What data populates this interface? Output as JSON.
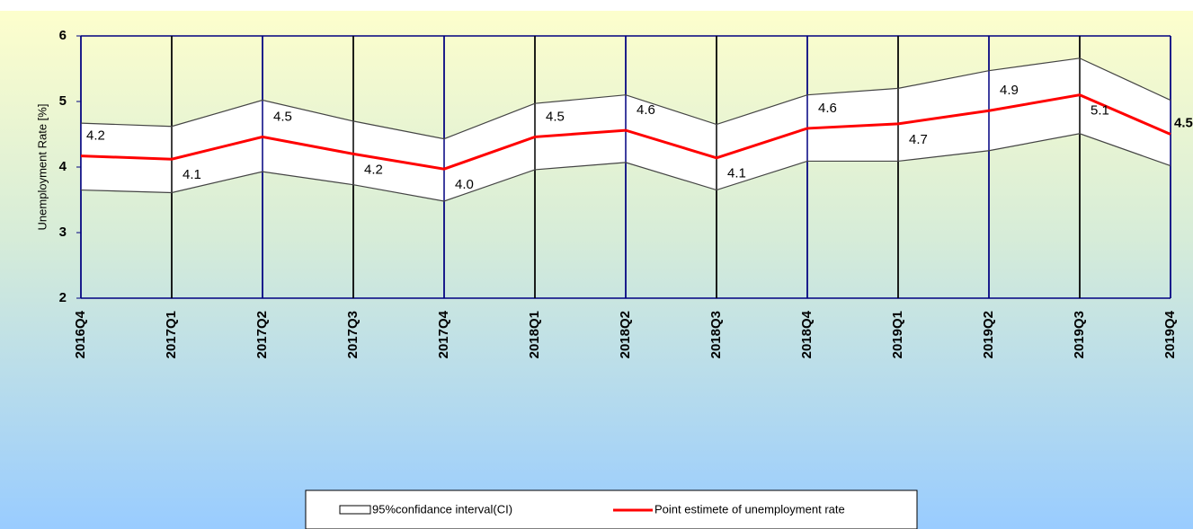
{
  "chart_data": {
    "type": "line",
    "y_label": "Unemployment Rate [%]",
    "categories": [
      "2016Q4",
      "2017Q1",
      "2017Q2",
      "2017Q3",
      "2017Q4",
      "2018Q1",
      "2018Q2",
      "2018Q3",
      "2018Q4",
      "2019Q1",
      "2019Q2",
      "2019Q3",
      "2019Q4"
    ],
    "series": [
      {
        "name": "95%confidance interval(CI)",
        "color": "#444444",
        "upper": [
          4.67,
          4.62,
          5.02,
          4.7,
          4.43,
          4.97,
          5.1,
          4.65,
          5.1,
          5.2,
          5.47,
          5.66,
          5.02
        ],
        "lower": [
          3.65,
          3.61,
          3.93,
          3.73,
          3.48,
          3.96,
          4.07,
          3.65,
          4.09,
          4.09,
          4.25,
          4.51,
          4.02
        ]
      },
      {
        "name": "Point estimete of unemployment rate",
        "color": "#ff0000",
        "values": [
          4.17,
          4.12,
          4.46,
          4.2,
          3.97,
          4.46,
          4.56,
          4.14,
          4.59,
          4.66,
          4.86,
          5.1,
          4.5
        ],
        "value_labels": [
          "4.2",
          "4.1",
          "4.5",
          "4.2",
          "4.0",
          "4.5",
          "4.6",
          "4.1",
          "4.6",
          "4.7",
          "4.9",
          "5.1",
          "4.5"
        ]
      }
    ],
    "ylim": [
      2,
      6
    ],
    "yticks": [
      2,
      3,
      4,
      5,
      6
    ],
    "grid": true,
    "legend": "bottom"
  }
}
